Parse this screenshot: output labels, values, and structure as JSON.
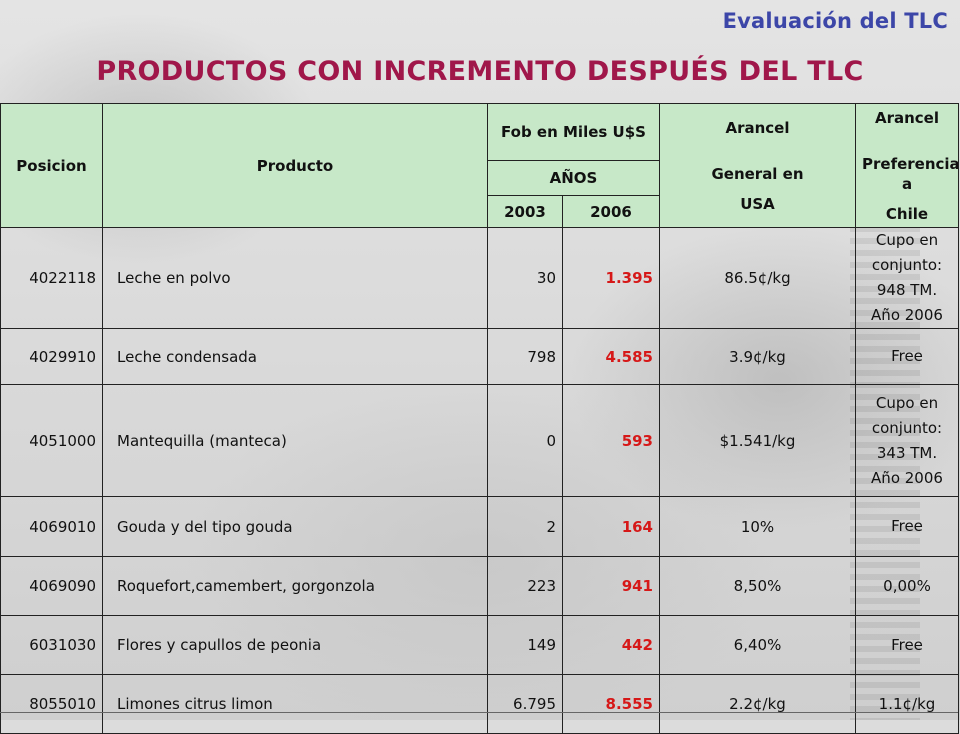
{
  "header": {
    "section_title": "Evaluación del TLC",
    "title": "PRODUCTOS CON INCREMENTO DESPUÉS DEL TLC"
  },
  "table": {
    "headers": {
      "posicion": "Posicion",
      "producto": "Producto",
      "fob": "Fob en Miles U$S",
      "anos": "AÑOS",
      "year_1": "2003",
      "year_2": "2006",
      "arancel_general_1": "Arancel",
      "arancel_general_2": "General en",
      "arancel_general_3": "USA",
      "arancel_pref_1": "Arancel",
      "arancel_pref_2": "Preferencial a",
      "arancel_pref_3": "Chile"
    },
    "rows": [
      {
        "posicion": "4022118",
        "producto": "Leche en polvo",
        "fob_2003": "30",
        "fob_2006": "1.395",
        "arancel_general": "86.5¢/kg",
        "arancel_pref": "Cupo en conjunto: 948 TM. Año 2006"
      },
      {
        "posicion": "4029910",
        "producto": "Leche condensada",
        "fob_2003": "798",
        "fob_2006": "4.585",
        "arancel_general": "3.9¢/kg",
        "arancel_pref": "Free"
      },
      {
        "posicion": "4051000",
        "producto": "Mantequilla (manteca)",
        "fob_2003": "0",
        "fob_2006": "593",
        "arancel_general": "$1.541/kg",
        "arancel_pref": "Cupo en conjunto: 343 TM. Año 2006"
      },
      {
        "posicion": "4069010",
        "producto": "Gouda y del tipo gouda",
        "fob_2003": "2",
        "fob_2006": "164",
        "arancel_general": "10%",
        "arancel_pref": "Free"
      },
      {
        "posicion": "4069090",
        "producto": "Roquefort,camembert, gorgonzola",
        "fob_2003": "223",
        "fob_2006": "941",
        "arancel_general": "8,50%",
        "arancel_pref": "0,00%"
      },
      {
        "posicion": "6031030",
        "producto": "Flores y capullos de peonia",
        "fob_2003": "149",
        "fob_2006": "442",
        "arancel_general": "6,40%",
        "arancel_pref": "Free"
      },
      {
        "posicion": "8055010",
        "producto": "Limones  citrus limon",
        "fob_2003": "6.795",
        "fob_2006": "8.555",
        "arancel_general": "2.2¢/kg",
        "arancel_pref": "1.1¢/kg"
      }
    ]
  },
  "colors": {
    "section_title": "#3c46a8",
    "title": "#a0174a",
    "header_bg": "#c7e8c8",
    "highlight_value": "#d61818"
  }
}
